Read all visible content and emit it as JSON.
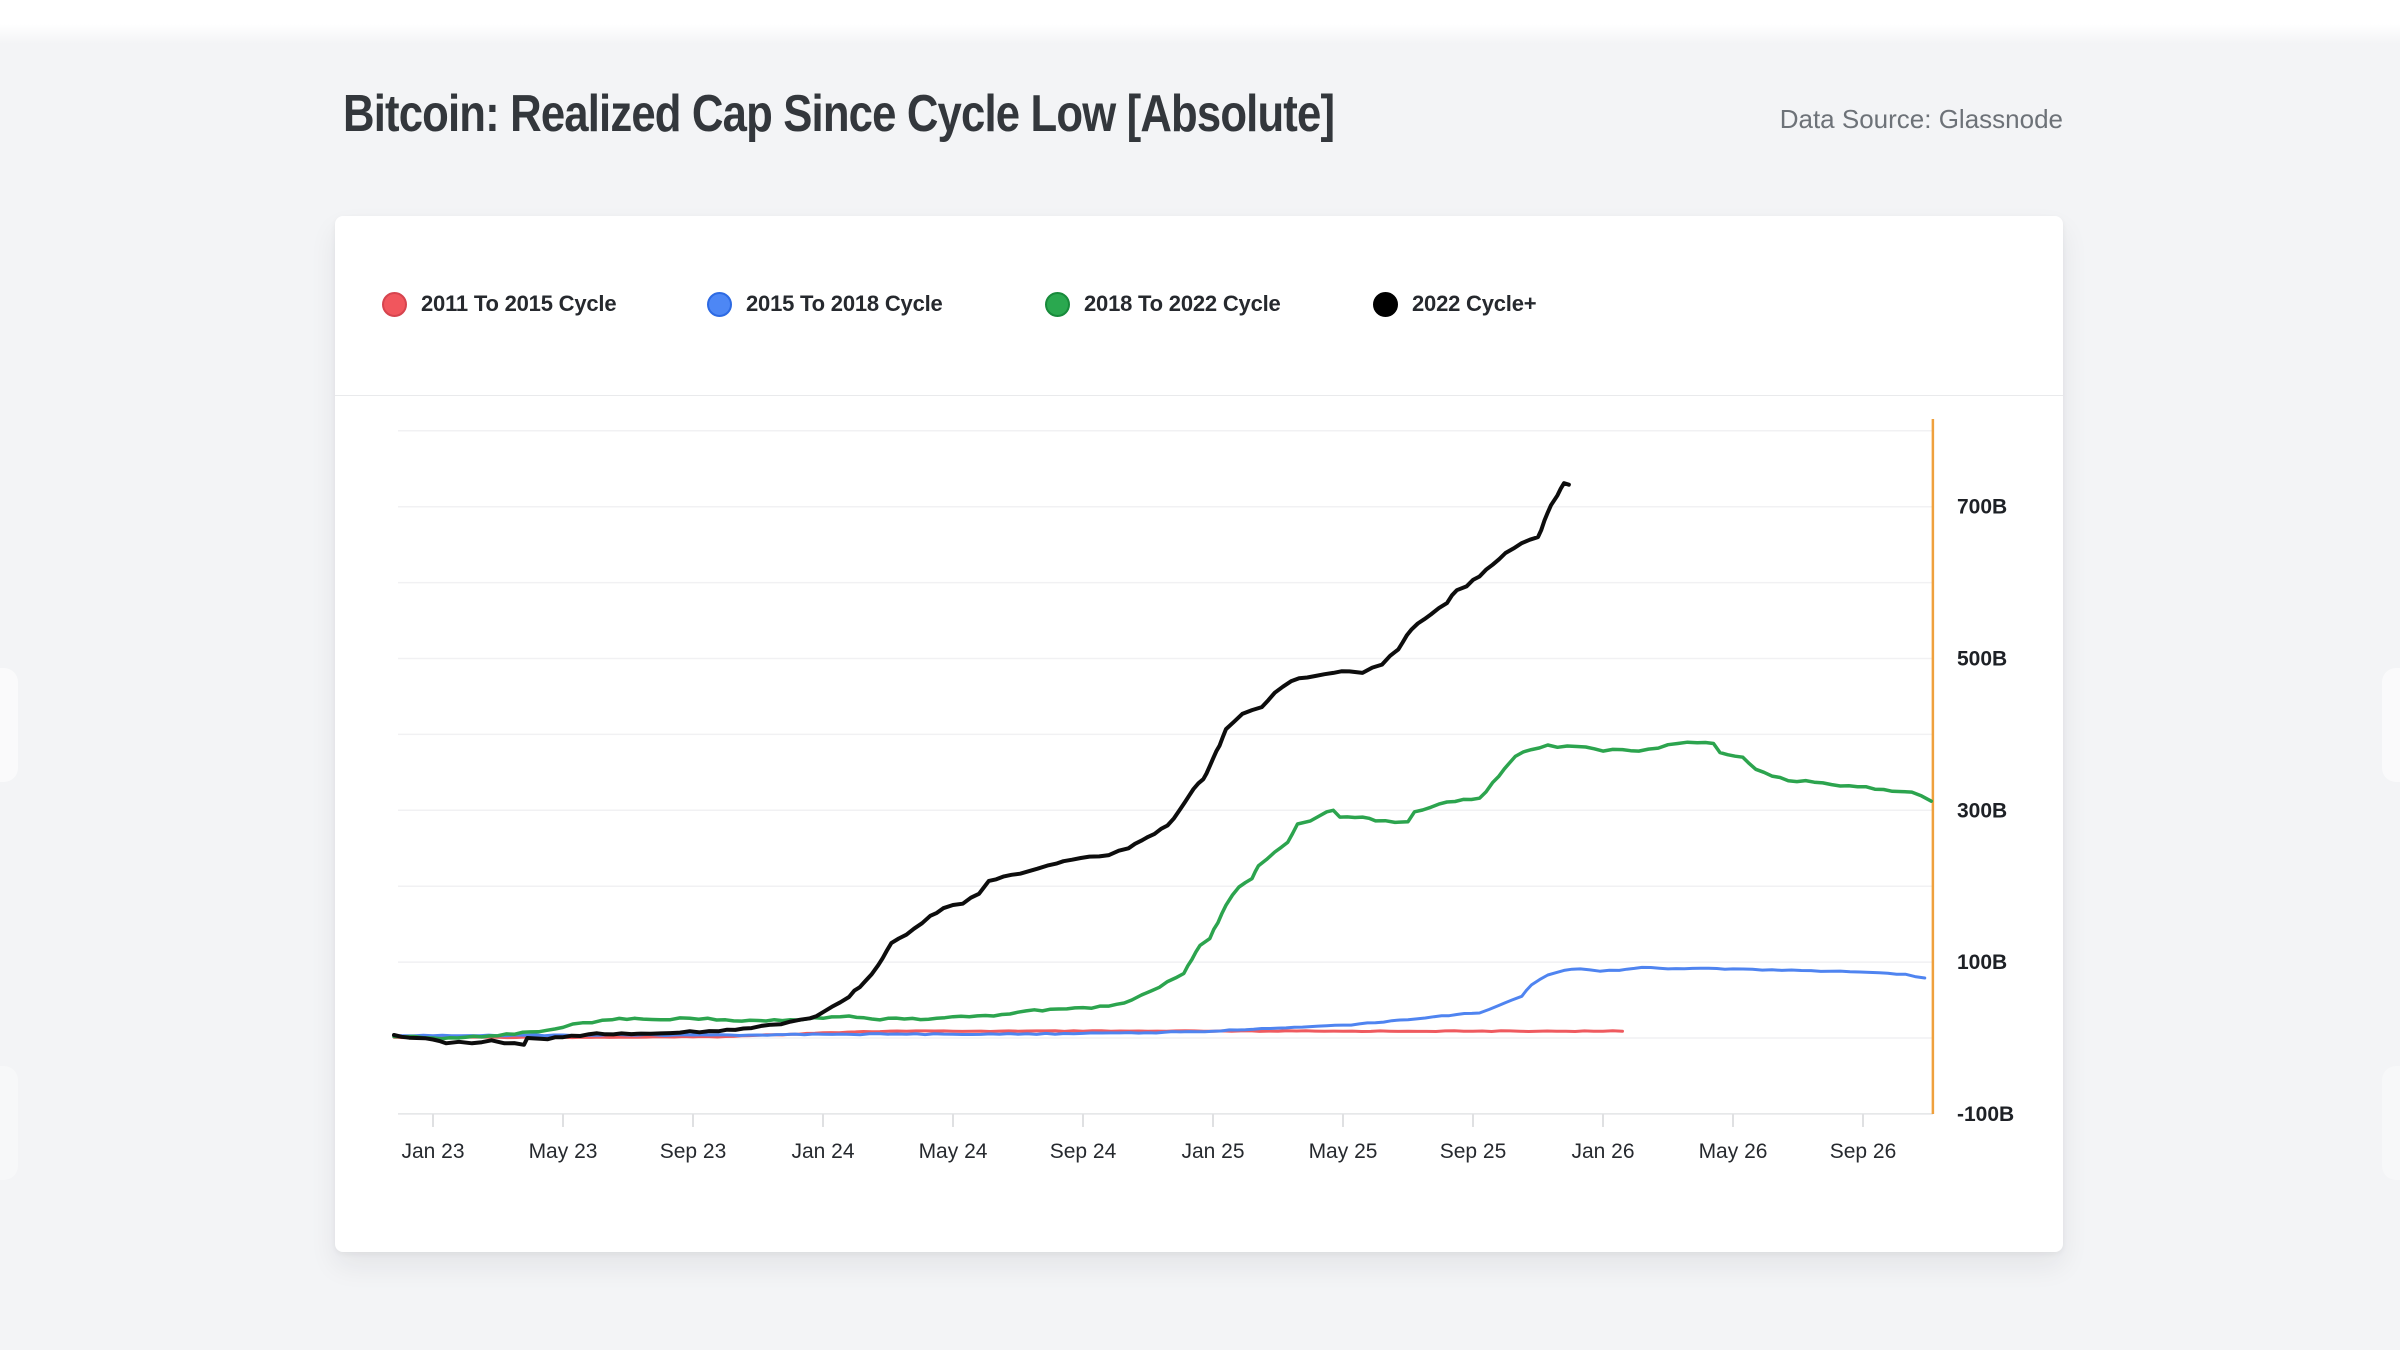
{
  "page": {
    "title": "Bitcoin: Realized Cap Since Cycle Low [Absolute]",
    "data_source": "Data Source: Glassnode"
  },
  "legend": [
    {
      "label": "2011 To 2015 Cycle",
      "fill": "#f1565d",
      "border": "#d6444e"
    },
    {
      "label": "2015 To 2018 Cycle",
      "fill": "#4d87f5",
      "border": "#2d6ae3"
    },
    {
      "label": "2018 To 2022 Cycle",
      "fill": "#2aa84f",
      "border": "#188a3b"
    },
    {
      "label": "2022 Cycle+",
      "fill": "#000000",
      "border": "#000000"
    }
  ],
  "chart_data": {
    "type": "line",
    "title": "Bitcoin: Realized Cap Since Cycle Low [Absolute]",
    "x_axis": {
      "tick_labels": [
        "Jan 23",
        "May 23",
        "Sep 23",
        "Jan 24",
        "May 24",
        "Sep 24",
        "Jan 25",
        "May 25",
        "Sep 25",
        "Jan 26",
        "May 26",
        "Sep 26"
      ],
      "tick_months": [
        0,
        4,
        8,
        12,
        16,
        20,
        24,
        28,
        32,
        36,
        40,
        44
      ],
      "unit": "months relative to Jan 2023 tick (cycle-low aligned calendar)",
      "xlim_months": [
        -1.2,
        46.15
      ]
    },
    "y_axis": {
      "tick_labels": [
        "700B",
        "500B",
        "300B",
        "100B",
        "-100B"
      ],
      "tick_values": [
        700,
        500,
        300,
        100,
        -100
      ],
      "gridline_values": [
        800,
        700,
        600,
        500,
        400,
        300,
        200,
        100,
        0,
        -100
      ],
      "unit": "USD billions (realized cap change since cycle low)",
      "ylim": [
        -100,
        815
      ],
      "grid": true,
      "labels_position": "right"
    },
    "end_boundary_line": {
      "x_month": 46.15,
      "color": "#efa03d"
    },
    "legend_position": "top-left",
    "series": [
      {
        "name": "2011 To 2015 Cycle",
        "color": "#ef5a5f",
        "width": 3,
        "points": [
          [
            -1.2,
            1
          ],
          [
            0,
            1
          ],
          [
            2,
            1
          ],
          [
            4,
            1
          ],
          [
            6,
            1
          ],
          [
            8,
            1.5
          ],
          [
            9,
            2
          ],
          [
            10,
            3.5
          ],
          [
            11,
            5
          ],
          [
            12,
            7
          ],
          [
            13,
            8
          ],
          [
            14,
            9
          ],
          [
            16,
            9
          ],
          [
            18,
            9
          ],
          [
            20,
            9
          ],
          [
            22,
            9
          ],
          [
            24,
            9
          ],
          [
            26,
            9
          ],
          [
            28,
            9
          ],
          [
            30,
            9
          ],
          [
            32,
            9
          ],
          [
            34,
            9
          ],
          [
            36,
            9
          ],
          [
            36.6,
            9
          ]
        ]
      },
      {
        "name": "2015 To 2018 Cycle",
        "color": "#4f84f0",
        "width": 3,
        "points": [
          [
            -1.2,
            3
          ],
          [
            0,
            3
          ],
          [
            2,
            3
          ],
          [
            4,
            4
          ],
          [
            6,
            4
          ],
          [
            8,
            4
          ],
          [
            10,
            4
          ],
          [
            12,
            5
          ],
          [
            14,
            5
          ],
          [
            16,
            5
          ],
          [
            18,
            5
          ],
          [
            20,
            6
          ],
          [
            22,
            7
          ],
          [
            23,
            8
          ],
          [
            24,
            9
          ],
          [
            25,
            11
          ],
          [
            26,
            13
          ],
          [
            27,
            15
          ],
          [
            28,
            17
          ],
          [
            29,
            20
          ],
          [
            30,
            24
          ],
          [
            30.8,
            28
          ],
          [
            31.5,
            31
          ],
          [
            32.2,
            33
          ],
          [
            32.8,
            43
          ],
          [
            33.2,
            50
          ],
          [
            33.5,
            55
          ],
          [
            33.8,
            70
          ],
          [
            34.3,
            83
          ],
          [
            34.8,
            89
          ],
          [
            35.3,
            91
          ],
          [
            35.9,
            88
          ],
          [
            36.5,
            89
          ],
          [
            37.2,
            93
          ],
          [
            38,
            91
          ],
          [
            39,
            92
          ],
          [
            40,
            91
          ],
          [
            41.5,
            89
          ],
          [
            43,
            88
          ],
          [
            44.5,
            86
          ],
          [
            45.3,
            84
          ],
          [
            45.9,
            79
          ]
        ]
      },
      {
        "name": "2018 To 2022 Cycle",
        "color": "#2ca44e",
        "width": 3.5,
        "points": [
          [
            -1.2,
            2
          ],
          [
            0,
            0
          ],
          [
            1,
            1
          ],
          [
            2,
            3
          ],
          [
            3,
            8
          ],
          [
            4,
            14
          ],
          [
            4.6,
            20
          ],
          [
            5.5,
            24
          ],
          [
            6.2,
            26
          ],
          [
            7,
            24
          ],
          [
            7.9,
            26
          ],
          [
            9,
            24
          ],
          [
            10,
            23
          ],
          [
            11,
            24
          ],
          [
            12,
            26
          ],
          [
            12.8,
            29
          ],
          [
            13.5,
            25
          ],
          [
            14.5,
            25
          ],
          [
            15.5,
            26
          ],
          [
            16.5,
            28
          ],
          [
            17.5,
            31
          ],
          [
            18,
            34
          ],
          [
            19,
            38
          ],
          [
            20,
            40
          ],
          [
            20.8,
            42
          ],
          [
            21.5,
            50
          ],
          [
            22.1,
            62
          ],
          [
            23.1,
            85
          ],
          [
            23.6,
            122
          ],
          [
            23.9,
            131
          ],
          [
            24.4,
            175
          ],
          [
            24.8,
            199
          ],
          [
            25.2,
            210
          ],
          [
            25.4,
            227
          ],
          [
            25.9,
            245
          ],
          [
            26.3,
            258
          ],
          [
            26.6,
            282
          ],
          [
            27,
            286
          ],
          [
            27.5,
            298
          ],
          [
            27.7,
            300
          ],
          [
            27.9,
            291
          ],
          [
            28.6,
            291
          ],
          [
            29,
            286
          ],
          [
            29.6,
            284
          ],
          [
            30,
            285
          ],
          [
            30.2,
            298
          ],
          [
            30.7,
            304
          ],
          [
            31.2,
            311
          ],
          [
            32.2,
            316
          ],
          [
            32.8,
            345
          ],
          [
            33.3,
            371
          ],
          [
            33.8,
            380
          ],
          [
            34.3,
            386
          ],
          [
            34.6,
            383
          ],
          [
            35.2,
            384
          ],
          [
            36,
            378
          ],
          [
            36.6,
            380
          ],
          [
            37.1,
            378
          ],
          [
            37.7,
            382
          ],
          [
            38.3,
            388
          ],
          [
            38.9,
            389
          ],
          [
            39.4,
            388
          ],
          [
            39.6,
            376
          ],
          [
            40.3,
            370
          ],
          [
            40.7,
            354
          ],
          [
            41.2,
            345
          ],
          [
            41.7,
            339
          ],
          [
            42.5,
            337
          ],
          [
            43.3,
            332
          ],
          [
            44.1,
            331
          ],
          [
            44.9,
            325
          ],
          [
            45.5,
            324
          ],
          [
            45.8,
            319
          ],
          [
            46.1,
            312
          ]
        ]
      },
      {
        "name": "2022 Cycle+",
        "color": "#0d0d0d",
        "width": 4,
        "points": [
          [
            -1.2,
            4
          ],
          [
            -0.5,
            0
          ],
          [
            0,
            -2
          ],
          [
            0.4,
            -7
          ],
          [
            0.8,
            -5
          ],
          [
            1.2,
            -7
          ],
          [
            1.8,
            -3
          ],
          [
            2.2,
            -7
          ],
          [
            2.8,
            -9
          ],
          [
            2.9,
            0
          ],
          [
            3.3,
            -1
          ],
          [
            4,
            1
          ],
          [
            4.8,
            5
          ],
          [
            5.8,
            6
          ],
          [
            7,
            6
          ],
          [
            7.9,
            9
          ],
          [
            8.8,
            9
          ],
          [
            9.8,
            13
          ],
          [
            10.7,
            18
          ],
          [
            11.6,
            26
          ],
          [
            12,
            34
          ],
          [
            12.8,
            54
          ],
          [
            13.3,
            75
          ],
          [
            13.7,
            96
          ],
          [
            14.1,
            125
          ],
          [
            14.8,
            144
          ],
          [
            15.3,
            161
          ],
          [
            15.7,
            171
          ],
          [
            16.3,
            177
          ],
          [
            16.8,
            190
          ],
          [
            17.1,
            207
          ],
          [
            17.8,
            215
          ],
          [
            18.6,
            223
          ],
          [
            19.2,
            230
          ],
          [
            19.4,
            233
          ],
          [
            20.2,
            239
          ],
          [
            20.8,
            241
          ],
          [
            21.4,
            250
          ],
          [
            22,
            265
          ],
          [
            22.6,
            280
          ],
          [
            23,
            302
          ],
          [
            23.4,
            328
          ],
          [
            23.7,
            341
          ],
          [
            24,
            368
          ],
          [
            24.2,
            385
          ],
          [
            24.4,
            407
          ],
          [
            24.9,
            427
          ],
          [
            25.5,
            436
          ],
          [
            25.9,
            455
          ],
          [
            26.4,
            470
          ],
          [
            26.9,
            475
          ],
          [
            27.7,
            481
          ],
          [
            28.2,
            483
          ],
          [
            28.6,
            481
          ],
          [
            28.9,
            488
          ],
          [
            29.2,
            492
          ],
          [
            29.7,
            512
          ],
          [
            30.1,
            538
          ],
          [
            30.7,
            558
          ],
          [
            31.2,
            573
          ],
          [
            31.5,
            590
          ],
          [
            31.8,
            595
          ],
          [
            32.4,
            617
          ],
          [
            33,
            639
          ],
          [
            33.5,
            652
          ],
          [
            34,
            660
          ],
          [
            34.2,
            682
          ],
          [
            34.4,
            702
          ],
          [
            34.6,
            715
          ],
          [
            34.8,
            731
          ],
          [
            34.95,
            729
          ]
        ]
      }
    ]
  }
}
